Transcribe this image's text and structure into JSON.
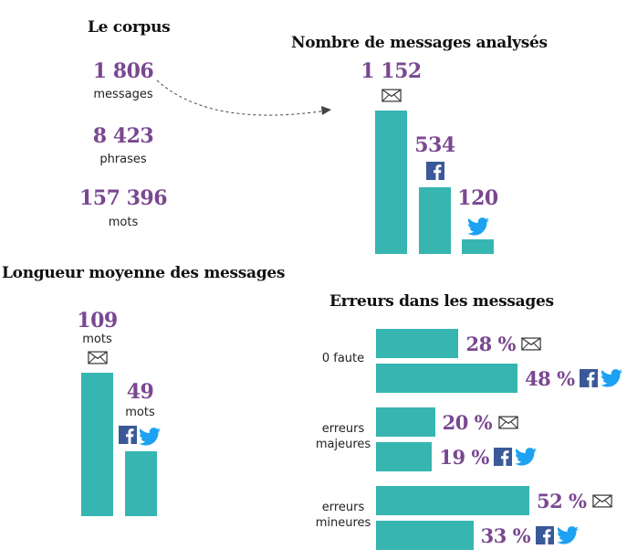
{
  "corpus": {
    "title": "Le corpus",
    "stats": [
      {
        "value": "1 806",
        "label": "messages"
      },
      {
        "value": "8 423",
        "label": "phrases"
      },
      {
        "value": "157 396",
        "label": "mots"
      }
    ]
  },
  "chart_data": [
    {
      "type": "bar",
      "title": "Nombre de messages analysés",
      "categories": [
        "email",
        "facebook",
        "twitter"
      ],
      "values": [
        1152,
        534,
        120
      ],
      "value_labels": [
        "1 152",
        "534",
        "120"
      ],
      "icons": [
        "envelope-icon",
        "facebook-icon",
        "twitter-icon"
      ]
    },
    {
      "type": "bar",
      "title": "Longueur  moyenne des messages",
      "categories": [
        "email",
        "facebook-twitter"
      ],
      "values": [
        109,
        49
      ],
      "value_labels": [
        "109",
        "49"
      ],
      "unit_label": "mots",
      "icons": [
        "envelope-icon",
        "facebook-twitter-icons"
      ]
    },
    {
      "type": "bar",
      "orientation": "horizontal",
      "title": "Erreurs dans les messages",
      "groups": [
        {
          "label": "0 faute",
          "bars": [
            {
              "source": "email",
              "value": 28,
              "label": "28 %"
            },
            {
              "source": "facebook-twitter",
              "value": 48,
              "label": "48 %"
            }
          ]
        },
        {
          "label": "erreurs majeures",
          "line1": "erreurs",
          "line2": "majeures",
          "bars": [
            {
              "source": "email",
              "value": 20,
              "label": "20 %"
            },
            {
              "source": "facebook-twitter",
              "value": 19,
              "label": "19 %"
            }
          ]
        },
        {
          "label": "erreurs mineures",
          "line1": "erreurs",
          "line2": "mineures",
          "bars": [
            {
              "source": "email",
              "value": 52,
              "label": "52 %"
            },
            {
              "source": "facebook-twitter",
              "value": 33,
              "label": "33 %"
            }
          ]
        }
      ]
    }
  ],
  "colors": {
    "bar": "#36b5b1",
    "number": "#7a4791",
    "facebook": "#3b5998",
    "twitter": "#1da1f2"
  }
}
